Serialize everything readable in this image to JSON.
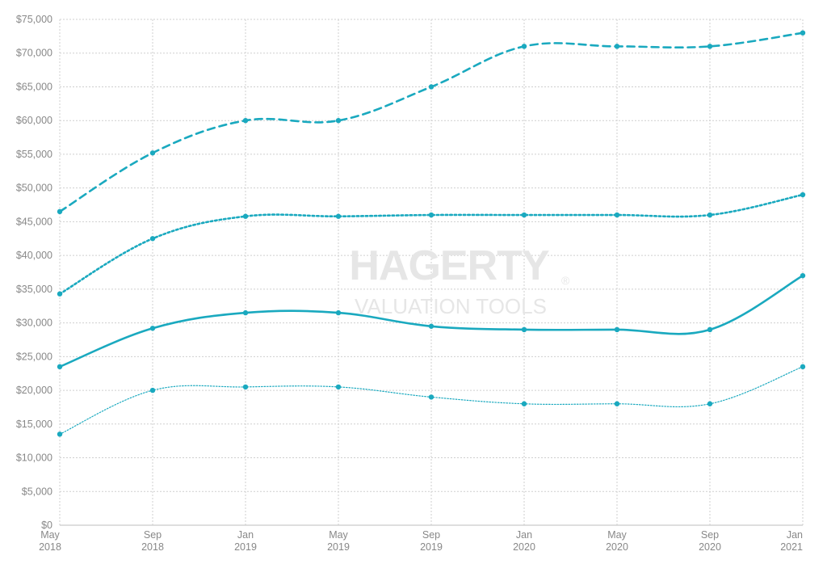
{
  "watermark": {
    "brand": "HAGERTY",
    "registered": "®",
    "subtitle": "VALUATION TOOLS"
  },
  "colors": {
    "series": "#1aa9bf",
    "grid": "#cfcfcf",
    "tick_text": "#888888"
  },
  "chart_data": {
    "type": "line",
    "title": "",
    "xlabel": "",
    "ylabel": "",
    "x_ticks": [
      {
        "month": "May",
        "year": "2018"
      },
      {
        "month": "Sep",
        "year": "2018"
      },
      {
        "month": "Jan",
        "year": "2019"
      },
      {
        "month": "May",
        "year": "2019"
      },
      {
        "month": "Sep",
        "year": "2019"
      },
      {
        "month": "Jan",
        "year": "2020"
      },
      {
        "month": "May",
        "year": "2020"
      },
      {
        "month": "Sep",
        "year": "2020"
      },
      {
        "month": "Jan",
        "year": "2021"
      }
    ],
    "y_ticks": [
      "$0",
      "$5,000",
      "$10,000",
      "$15,000",
      "$20,000",
      "$25,000",
      "$30,000",
      "$35,000",
      "$40,000",
      "$45,000",
      "$50,000",
      "$55,000",
      "$60,000",
      "$65,000",
      "$70,000",
      "$75,000"
    ],
    "ylim": [
      0,
      75000
    ],
    "grid": true,
    "legend": "none",
    "series": [
      {
        "style": "dashed",
        "values": [
          46500,
          55200,
          60000,
          60000,
          65000,
          71000,
          71000,
          71000,
          73000
        ]
      },
      {
        "style": "dotted",
        "values": [
          34300,
          42500,
          45800,
          45800,
          46000,
          46000,
          46000,
          46000,
          49000
        ]
      },
      {
        "style": "solid",
        "values": [
          23500,
          29200,
          31500,
          31500,
          29500,
          29000,
          29000,
          29000,
          37000
        ]
      },
      {
        "style": "thin-dotted",
        "values": [
          13500,
          20000,
          20500,
          20500,
          19000,
          18000,
          18000,
          18000,
          23500
        ]
      }
    ]
  }
}
